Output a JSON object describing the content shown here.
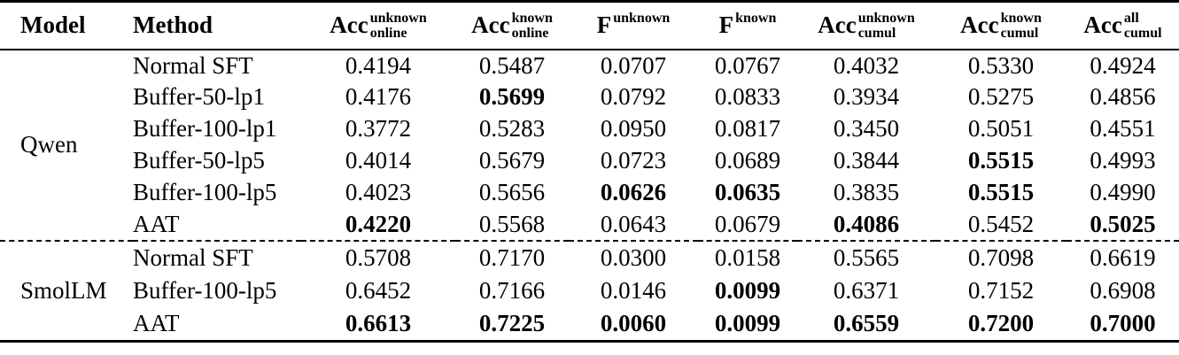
{
  "table": {
    "headers": [
      {
        "key": "model",
        "base": "Model",
        "sup": "",
        "sub": ""
      },
      {
        "key": "method",
        "base": "Method",
        "sup": "",
        "sub": ""
      },
      {
        "key": "acc-online-unknown",
        "base": "Acc",
        "sup": "unknown",
        "sub": "online"
      },
      {
        "key": "acc-online-known",
        "base": "Acc",
        "sup": "known",
        "sub": "online"
      },
      {
        "key": "f-unknown",
        "base": "F",
        "sup": "unknown",
        "sub": ""
      },
      {
        "key": "f-known",
        "base": "F",
        "sup": "known",
        "sub": ""
      },
      {
        "key": "acc-cumul-unknown",
        "base": "Acc",
        "sup": "unknown",
        "sub": "cumul"
      },
      {
        "key": "acc-cumul-known",
        "base": "Acc",
        "sup": "known",
        "sub": "cumul"
      },
      {
        "key": "acc-cumul-all",
        "base": "Acc",
        "sup": "all",
        "sub": "cumul"
      }
    ],
    "groups": [
      {
        "model": "Qwen",
        "rows": [
          {
            "method": "Normal SFT",
            "values": [
              "0.4194",
              "0.5487",
              "0.0707",
              "0.0767",
              "0.4032",
              "0.5330",
              "0.4924"
            ],
            "bold": []
          },
          {
            "method": "Buffer-50-lp1",
            "values": [
              "0.4176",
              "0.5699",
              "0.0792",
              "0.0833",
              "0.3934",
              "0.5275",
              "0.4856"
            ],
            "bold": [
              1
            ]
          },
          {
            "method": "Buffer-100-lp1",
            "values": [
              "0.3772",
              "0.5283",
              "0.0950",
              "0.0817",
              "0.3450",
              "0.5051",
              "0.4551"
            ],
            "bold": []
          },
          {
            "method": "Buffer-50-lp5",
            "values": [
              "0.4014",
              "0.5679",
              "0.0723",
              "0.0689",
              "0.3844",
              "0.5515",
              "0.4993"
            ],
            "bold": [
              5
            ]
          },
          {
            "method": "Buffer-100-lp5",
            "values": [
              "0.4023",
              "0.5656",
              "0.0626",
              "0.0635",
              "0.3835",
              "0.5515",
              "0.4990"
            ],
            "bold": [
              2,
              3,
              5
            ]
          },
          {
            "method": "AAT",
            "values": [
              "0.4220",
              "0.5568",
              "0.0643",
              "0.0679",
              "0.4086",
              "0.5452",
              "0.5025"
            ],
            "bold": [
              0,
              4,
              6
            ]
          }
        ]
      },
      {
        "model": "SmolLM",
        "rows": [
          {
            "method": "Normal SFT",
            "values": [
              "0.5708",
              "0.7170",
              "0.0300",
              "0.0158",
              "0.5565",
              "0.7098",
              "0.6619"
            ],
            "bold": []
          },
          {
            "method": "Buffer-100-lp5",
            "values": [
              "0.6452",
              "0.7166",
              "0.0146",
              "0.0099",
              "0.6371",
              "0.7152",
              "0.6908"
            ],
            "bold": [
              3
            ]
          },
          {
            "method": "AAT",
            "values": [
              "0.6613",
              "0.7225",
              "0.0060",
              "0.0099",
              "0.6559",
              "0.7200",
              "0.7000"
            ],
            "bold": [
              0,
              1,
              2,
              3,
              4,
              5,
              6
            ]
          }
        ]
      }
    ]
  },
  "colors": {
    "text": "#000000",
    "background": "#ffffff",
    "rule": "#000000"
  }
}
